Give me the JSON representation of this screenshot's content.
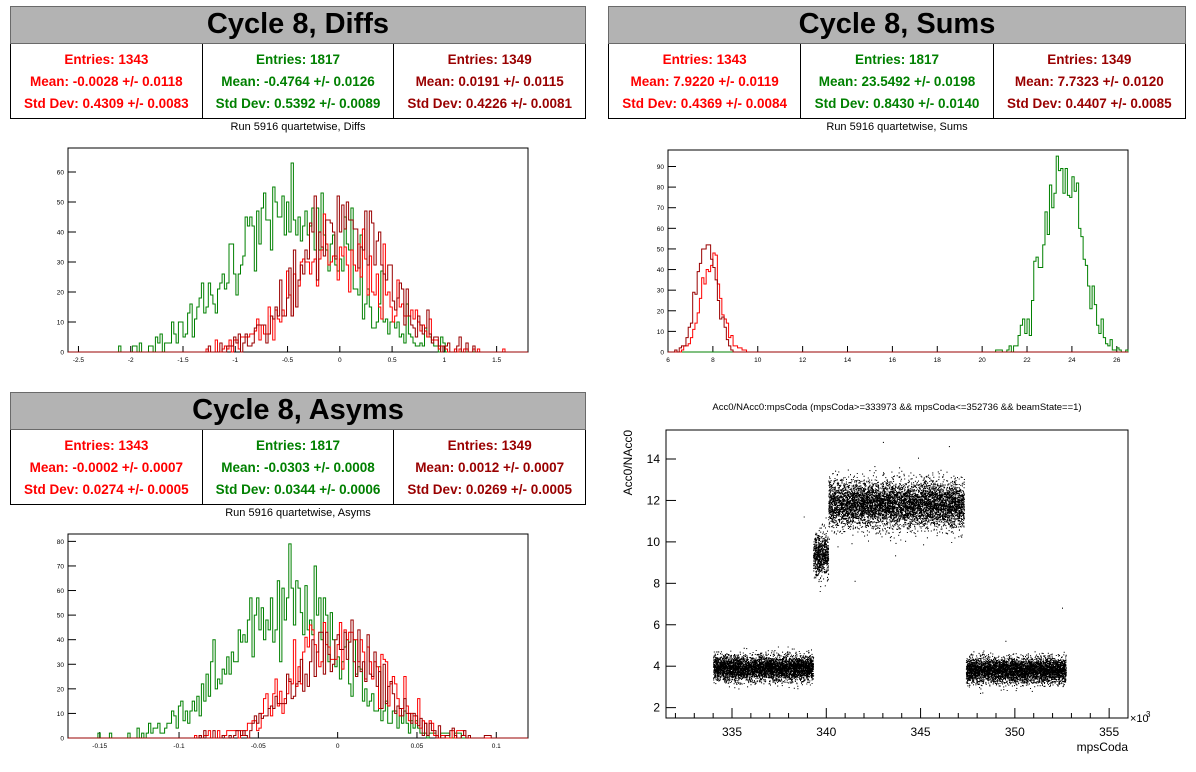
{
  "colors": {
    "red": "#ff0000",
    "green": "#008000",
    "darkred": "#990000",
    "axis": "#000000"
  },
  "panels": {
    "diffs": {
      "title": "Cycle 8, Diffs",
      "subtitle": "Run 5916 quartetwise, Diffs",
      "stats": [
        {
          "color": "#ff0000",
          "entries": "Entries: 1343",
          "mean": "Mean: -0.0028 +/- 0.0118",
          "std": "Std Dev: 0.4309 +/- 0.0083"
        },
        {
          "color": "#008000",
          "entries": "Entries: 1817",
          "mean": "Mean: -0.4764 +/- 0.0126",
          "std": "Std Dev: 0.5392 +/- 0.0089"
        },
        {
          "color": "#990000",
          "entries": "Entries: 1349",
          "mean": "Mean: 0.0191 +/- 0.0115",
          "std": "Std Dev: 0.4226 +/- 0.0081"
        }
      ]
    },
    "sums": {
      "title": "Cycle 8, Sums",
      "subtitle": "Run 5916 quartetwise, Sums",
      "stats": [
        {
          "color": "#ff0000",
          "entries": "Entries: 1343",
          "mean": "Mean: 7.9220 +/- 0.0119",
          "std": "Std Dev: 0.4369 +/- 0.0084"
        },
        {
          "color": "#008000",
          "entries": "Entries: 1817",
          "mean": "Mean: 23.5492 +/- 0.0198",
          "std": "Std Dev: 0.8430 +/- 0.0140"
        },
        {
          "color": "#990000",
          "entries": "Entries: 1349",
          "mean": "Mean: 7.7323 +/- 0.0120",
          "std": "Std Dev: 0.4407 +/- 0.0085"
        }
      ]
    },
    "asyms": {
      "title": "Cycle 8, Asyms",
      "subtitle": "Run 5916 quartetwise, Asyms",
      "stats": [
        {
          "color": "#ff0000",
          "entries": "Entries: 1343",
          "mean": "Mean: -0.0002 +/- 0.0007",
          "std": "Std Dev: 0.0274 +/- 0.0005"
        },
        {
          "color": "#008000",
          "entries": "Entries: 1817",
          "mean": "Mean: -0.0303 +/- 0.0008",
          "std": "Std Dev: 0.0344 +/- 0.0006"
        },
        {
          "color": "#990000",
          "entries": "Entries: 1349",
          "mean": "Mean: 0.0012 +/- 0.0007",
          "std": "Std Dev: 0.0269 +/- 0.0005"
        }
      ]
    },
    "scatter": {
      "title": "Acc0/NAcc0:mpsCoda (mpsCoda>=333973 && mpsCoda<=352736 && beamState==1)"
    }
  },
  "chart_data": [
    {
      "type": "histogram",
      "title": "Run 5916 quartetwise, Diffs",
      "xlim": [
        -2.6,
        1.8
      ],
      "ylim": [
        0,
        68
      ],
      "xticks": [
        -2.5,
        -2,
        -1.5,
        -1,
        -0.5,
        0,
        0.5,
        1,
        1.5
      ],
      "xtick_labels": [
        "-2.5",
        "-2",
        "-1.5",
        "-1",
        "-0.5",
        "0",
        "0.5",
        "1",
        "1.5"
      ],
      "yticks": [
        0,
        10,
        20,
        30,
        40,
        50,
        60
      ],
      "series": [
        {
          "color": "#008000",
          "entries": 1817,
          "mean": -0.4764,
          "std": 0.5392,
          "peak": 63
        },
        {
          "color": "#ff0000",
          "entries": 1343,
          "mean": -0.0028,
          "std": 0.4309,
          "peak": 46
        },
        {
          "color": "#990000",
          "entries": 1349,
          "mean": 0.0191,
          "std": 0.4226,
          "peak": 52
        }
      ]
    },
    {
      "type": "histogram",
      "title": "Run 5916 quartetwise, Sums",
      "xlim": [
        6,
        26.5
      ],
      "ylim": [
        0,
        98
      ],
      "xticks": [
        6,
        8,
        10,
        12,
        14,
        16,
        18,
        20,
        22,
        24,
        26
      ],
      "xtick_labels": [
        "6",
        "8",
        "10",
        "12",
        "14",
        "16",
        "18",
        "20",
        "22",
        "24",
        "26"
      ],
      "yticks": [
        0,
        10,
        20,
        30,
        40,
        50,
        60,
        70,
        80,
        90
      ],
      "series": [
        {
          "color": "#008000",
          "entries": 1817,
          "mean": 23.5492,
          "std": 0.843,
          "peak": 95
        },
        {
          "color": "#ff0000",
          "entries": 1343,
          "mean": 7.922,
          "std": 0.4369,
          "peak": 48
        },
        {
          "color": "#990000",
          "entries": 1349,
          "mean": 7.7323,
          "std": 0.4407,
          "peak": 52
        }
      ]
    },
    {
      "type": "histogram",
      "title": "Run 5916 quartetwise, Asyms",
      "xlim": [
        -0.17,
        0.12
      ],
      "ylim": [
        0,
        83
      ],
      "xticks": [
        -0.15,
        -0.1,
        -0.05,
        0,
        0.05,
        0.1
      ],
      "xtick_labels": [
        "-0.15",
        "-0.1",
        "-0.05",
        "0",
        "0.05",
        "0.1"
      ],
      "yticks": [
        0,
        10,
        20,
        30,
        40,
        50,
        60,
        70,
        80
      ],
      "series": [
        {
          "color": "#008000",
          "entries": 1817,
          "mean": -0.0303,
          "std": 0.0344,
          "peak": 79
        },
        {
          "color": "#ff0000",
          "entries": 1343,
          "mean": -0.0002,
          "std": 0.0274,
          "peak": 47
        },
        {
          "color": "#990000",
          "entries": 1349,
          "mean": 0.0012,
          "std": 0.0269,
          "peak": 48
        }
      ]
    },
    {
      "type": "scatter",
      "title": "Acc0/NAcc0:mpsCoda (mpsCoda>=333973 && mpsCoda<=352736 && beamState==1)",
      "xlabel": "mpsCoda",
      "ylabel": "Acc0/NAcc0",
      "x_multiplier": "×10",
      "x_multiplier_exp": "3",
      "xlim": [
        331.5,
        356
      ],
      "ylim": [
        1.5,
        15.4
      ],
      "xticks": [
        335,
        340,
        345,
        350,
        355
      ],
      "xtick_labels": [
        "335",
        "340",
        "345",
        "350",
        "355"
      ],
      "yticks": [
        2,
        4,
        6,
        8,
        10,
        12,
        14
      ],
      "ytick_labels": [
        "2",
        "4",
        "6",
        "8",
        "10",
        "12",
        "14"
      ],
      "clusters": [
        {
          "x_range": [
            334,
            339.3
          ],
          "y_center": 3.9,
          "y_spread": 0.3
        },
        {
          "x_range": [
            339.3,
            340.1
          ],
          "y_center": 9.4,
          "y_spread": 0.5
        },
        {
          "x_range": [
            340.1,
            347.3
          ],
          "y_center": 11.8,
          "y_spread": 0.55
        },
        {
          "x_range": [
            347.4,
            352.7
          ],
          "y_center": 3.8,
          "y_spread": 0.3
        }
      ]
    }
  ]
}
